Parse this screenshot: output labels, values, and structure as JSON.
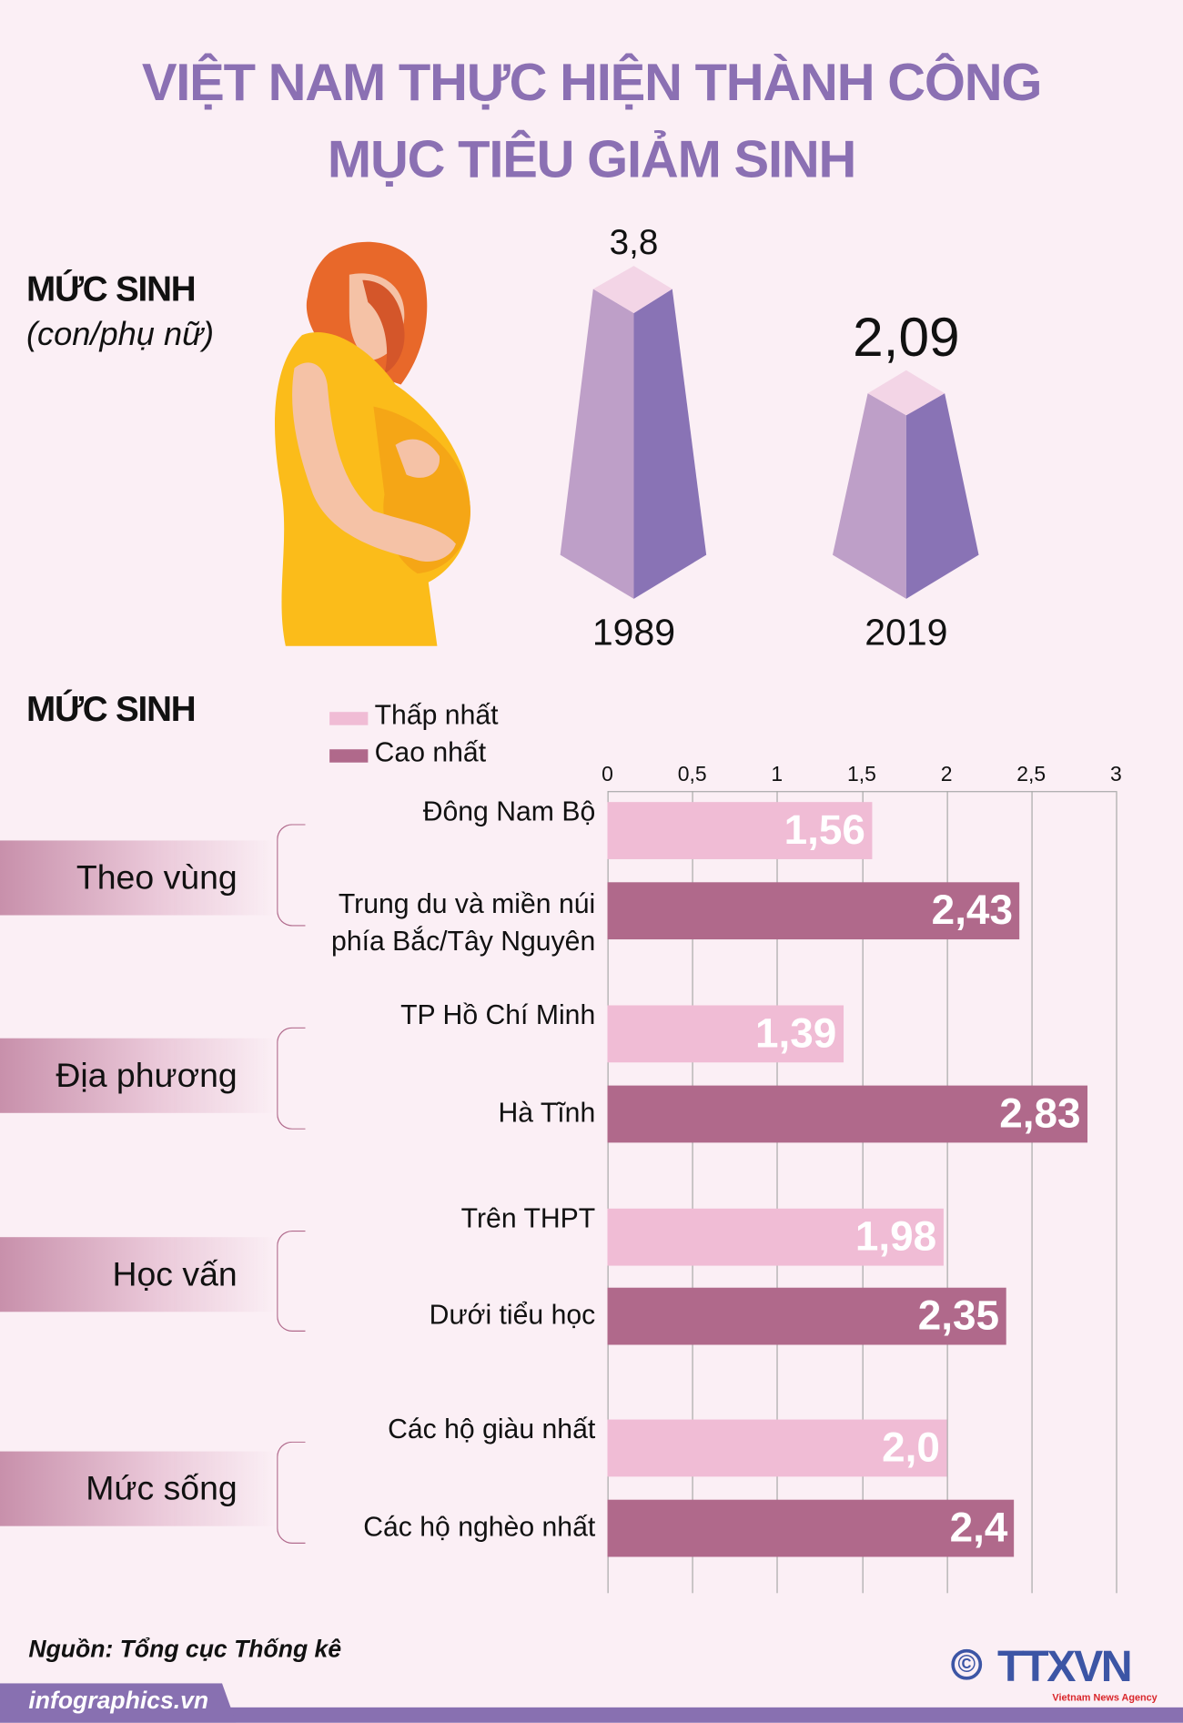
{
  "title": {
    "line1": "VIỆT NAM THỰC HIỆN THÀNH CÔNG",
    "line2": "MỤC TIÊU GIẢM SINH"
  },
  "top_section": {
    "heading": "MỨC SINH",
    "unit": "(con/phụ nữ)",
    "pillars": [
      {
        "year": "1989",
        "value": 3.8,
        "value_label": "3,8"
      },
      {
        "year": "2019",
        "value": 2.09,
        "value_label": "2,09"
      }
    ]
  },
  "colors": {
    "title": "#8b70b3",
    "lowest": "#f0bcd5",
    "highest": "#b0698b",
    "background": "#fbeff5",
    "pillar_left": "#be9fc8",
    "pillar_right": "#8973b5",
    "pillar_top": "#f3d5e6"
  },
  "chart_data": {
    "type": "bar",
    "orientation": "horizontal",
    "title": "MỨC SINH",
    "xlim": [
      0,
      3
    ],
    "ticks": [
      "0",
      "0,5",
      "1",
      "1,5",
      "2",
      "2,5",
      "3"
    ],
    "grid": true,
    "legend": [
      {
        "name": "Thấp nhất",
        "color": "#f0bcd5"
      },
      {
        "name": "Cao nhất",
        "color": "#b0698b"
      }
    ],
    "legend_placement": "top",
    "groups": [
      {
        "name": "Theo vùng",
        "bars": [
          {
            "label": [
              "Đông Nam Bộ"
            ],
            "value": 1.56,
            "value_label": "1,56",
            "series": "Thấp nhất"
          },
          {
            "label": [
              "Trung du và miền núi",
              "phía Bắc/Tây Nguyên"
            ],
            "value": 2.43,
            "value_label": "2,43",
            "series": "Cao nhất"
          }
        ]
      },
      {
        "name": "Địa phương",
        "bars": [
          {
            "label": [
              "TP Hồ Chí Minh"
            ],
            "value": 1.39,
            "value_label": "1,39",
            "series": "Thấp nhất"
          },
          {
            "label": [
              "Hà Tĩnh"
            ],
            "value": 2.83,
            "value_label": "2,83",
            "series": "Cao nhất"
          }
        ]
      },
      {
        "name": "Học vấn",
        "bars": [
          {
            "label": [
              "Trên THPT"
            ],
            "value": 1.98,
            "value_label": "1,98",
            "series": "Thấp nhất"
          },
          {
            "label": [
              "Dưới tiểu học"
            ],
            "value": 2.35,
            "value_label": "2,35",
            "series": "Cao nhất"
          }
        ]
      },
      {
        "name": "Mức sống",
        "bars": [
          {
            "label": [
              "Các hộ giàu nhất"
            ],
            "value": 2.0,
            "value_label": "2,0",
            "series": "Thấp nhất"
          },
          {
            "label": [
              "Các hộ nghèo nhất"
            ],
            "value": 2.4,
            "value_label": "2,4",
            "series": "Cao nhất"
          }
        ]
      }
    ]
  },
  "footer": {
    "source": "Nguồn: Tổng cục Thống kê",
    "site": "infographics.vn",
    "logo": "TTXVN",
    "logo_sub": "Vietnam News Agency",
    "copyright": "©"
  }
}
